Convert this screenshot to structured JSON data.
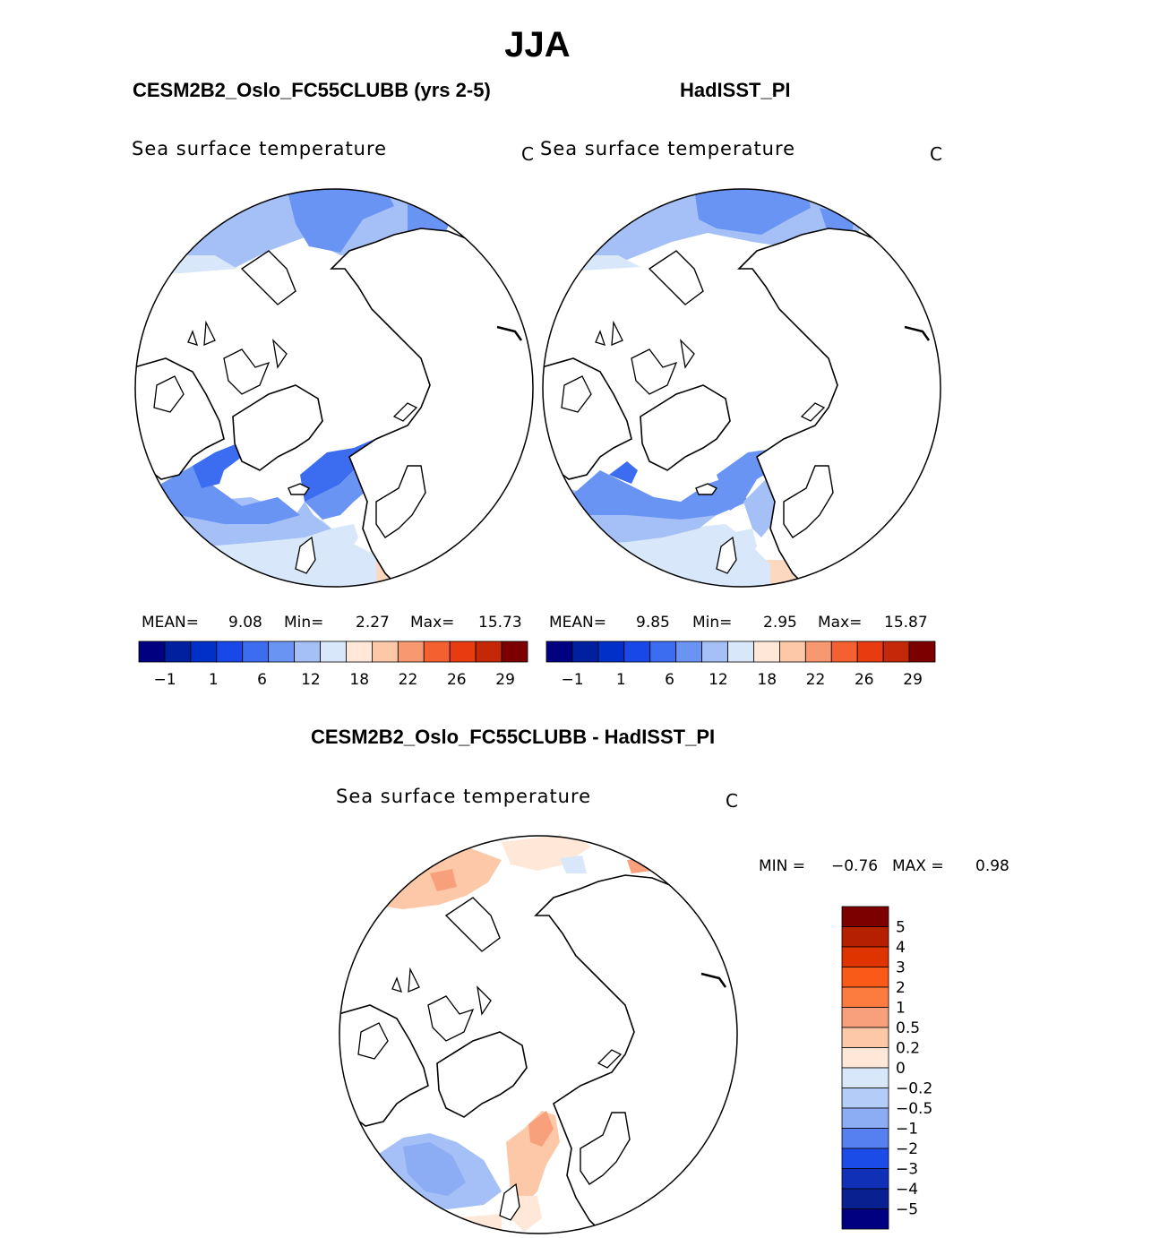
{
  "season": "JJA",
  "panels": [
    {
      "title": "CESM2B2_Oslo_FC55CLUBB (yrs 2-5)",
      "variable": "Sea surface temperature",
      "unit": "C",
      "stats": {
        "mean_label": "MEAN=",
        "mean": "9.08",
        "min_label": "Min=",
        "min": "2.27",
        "max_label": "Max=",
        "max": "15.73"
      }
    },
    {
      "title": "HadISST_PI",
      "variable": "Sea surface temperature",
      "unit": "C",
      "stats": {
        "mean_label": "MEAN=",
        "mean": "9.85",
        "min_label": "Min=",
        "min": "2.95",
        "max_label": "Max=",
        "max": "15.87"
      }
    },
    {
      "title": "CESM2B2_Oslo_FC55CLUBB - HadISST_PI",
      "variable": "Sea surface temperature",
      "unit": "C",
      "stats": {
        "min_label": "MIN =",
        "min": "−0.76",
        "max_label": "MAX =",
        "max": "0.98"
      }
    }
  ],
  "chart_data": [
    {
      "type": "heatmap",
      "projection": "north polar stereographic",
      "title": "CESM2B2_Oslo_FC55CLUBB (yrs 2-5)",
      "variable": "Sea surface temperature",
      "unit": "C",
      "mean": 9.08,
      "min": 2.27,
      "max": 15.73,
      "colorbar": {
        "orientation": "horizontal",
        "tick_labels": [
          "−1",
          "1",
          "6",
          "12",
          "18",
          "22",
          "26",
          "29"
        ],
        "colors": [
          "#000080",
          "#0020a0",
          "#0030c8",
          "#1848e8",
          "#3c6cf0",
          "#6a94f4",
          "#a4c0f6",
          "#d8e8fa",
          "#ffe8d8",
          "#fcc8a8",
          "#f89870",
          "#f46030",
          "#e83c10",
          "#c42808",
          "#7c0000"
        ]
      }
    },
    {
      "type": "heatmap",
      "projection": "north polar stereographic",
      "title": "HadISST_PI",
      "variable": "Sea surface temperature",
      "unit": "C",
      "mean": 9.85,
      "min": 2.95,
      "max": 15.87,
      "colorbar": {
        "orientation": "horizontal",
        "tick_labels": [
          "−1",
          "1",
          "6",
          "12",
          "18",
          "22",
          "26",
          "29"
        ],
        "colors": [
          "#000080",
          "#0020a0",
          "#0030c8",
          "#1848e8",
          "#3c6cf0",
          "#6a94f4",
          "#a4c0f6",
          "#d8e8fa",
          "#ffe8d8",
          "#fcc8a8",
          "#f89870",
          "#f46030",
          "#e83c10",
          "#c42808",
          "#7c0000"
        ]
      }
    },
    {
      "type": "heatmap",
      "projection": "north polar stereographic",
      "title": "CESM2B2_Oslo_FC55CLUBB - HadISST_PI",
      "variable": "Sea surface temperature",
      "unit": "C",
      "min": -0.76,
      "max": 0.98,
      "colorbar": {
        "orientation": "vertical",
        "tick_labels": [
          "5",
          "4",
          "3",
          "2",
          "1",
          "0.5",
          "0.2",
          "0",
          "−0.2",
          "−0.5",
          "−1",
          "−2",
          "−3",
          "−4",
          "−5"
        ],
        "colors": [
          "#7c0000",
          "#b42000",
          "#e03400",
          "#fa5a18",
          "#fc7c40",
          "#f8a07c",
          "#fcc8a8",
          "#ffe8d8",
          "#d8e8fa",
          "#b4ccf8",
          "#8cacf4",
          "#5680f0",
          "#1c4ce8",
          "#1030b8",
          "#082090",
          "#000080"
        ]
      }
    }
  ],
  "colors": {
    "land": "#ffffff",
    "coast": "#000000"
  }
}
